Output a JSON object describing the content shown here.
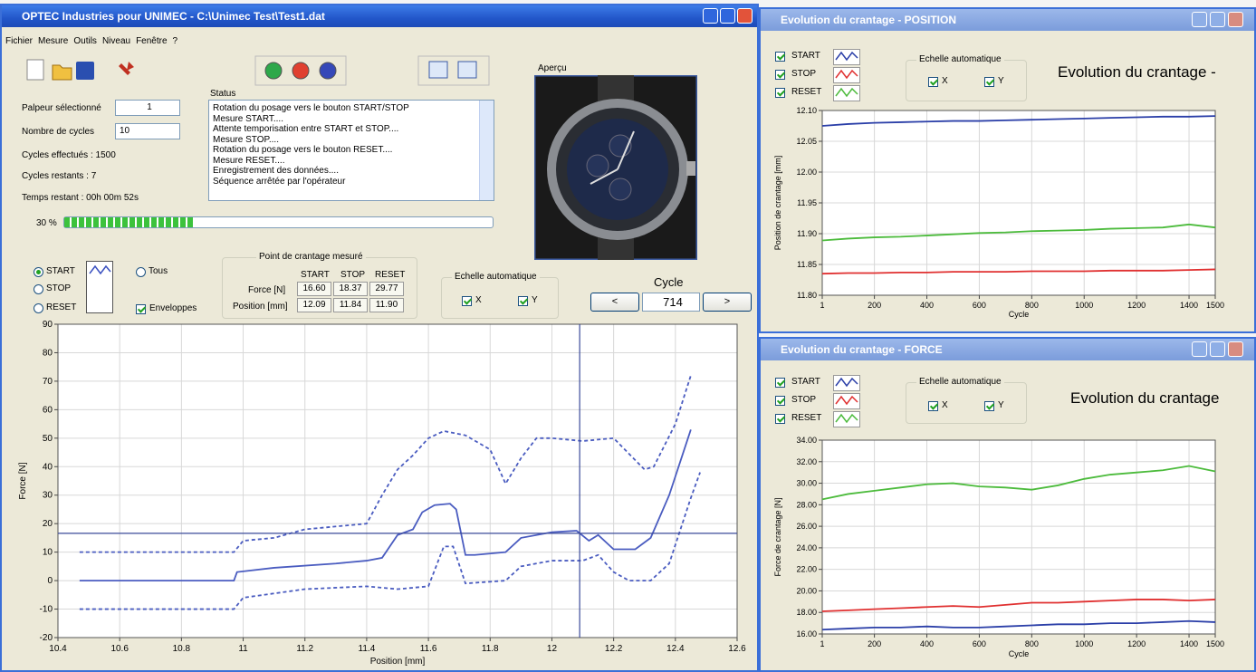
{
  "main_window": {
    "title": "OPTEC Industries pour UNIMEC - C:\\Unimec Test\\Test1.dat",
    "menu": [
      "Fichier",
      "Mesure",
      "Outils",
      "Niveau",
      "Fenêtre",
      "?"
    ],
    "palpeur_label": "Palpeur sélectionné",
    "palpeur_value": "1",
    "cycles_label": "Nombre de cycles",
    "cycles_value": "10",
    "cycles_effectues": "Cycles effectués : 1500",
    "cycles_restants": "Cycles restants : 7",
    "temps_restant": "Temps restant : 00h 00m 52s",
    "progress_label": "30 %",
    "progress": 30,
    "status_title": "Status",
    "status_lines": [
      "Rotation du posage vers le bouton START/STOP",
      "Mesure START....",
      "Attente temporisation entre START et STOP....",
      "Mesure STOP....",
      "Rotation du posage vers le bouton RESET....",
      "Mesure RESET....",
      "Enregistrement des données....",
      "Séquence arrêtée par l'opérateur"
    ],
    "apercu": "Aperçu",
    "radios": [
      "START",
      "STOP",
      "RESET"
    ],
    "tous": "Tous",
    "enveloppes": "Enveloppes",
    "point_title": "Point de crantage mesuré",
    "point_headers": [
      "START",
      "STOP",
      "RESET"
    ],
    "point_rows": [
      {
        "label": "Force [N]",
        "values": [
          "16.60",
          "18.37",
          "29.77"
        ]
      },
      {
        "label": "Position [mm]",
        "values": [
          "12.09",
          "11.84",
          "11.90"
        ]
      }
    ],
    "echelle": "Echelle automatique",
    "echelle_x": "X",
    "echelle_y": "Y",
    "cycle_label": "Cycle",
    "cycle_value": "714",
    "prev": "<",
    "next": ">"
  },
  "position_window": {
    "title": "Evolution du crantage - POSITION",
    "echelle": "Echelle automatique",
    "echelle_x": "X",
    "echelle_y": "Y"
  },
  "force_window": {
    "title": "Evolution du crantage - FORCE",
    "echelle": "Echelle automatique",
    "echelle_x": "X",
    "echelle_y": "Y"
  },
  "chart_data": [
    {
      "type": "line",
      "xlabel": "Position [mm]",
      "ylabel": "Force [N]",
      "xlim": [
        10.4,
        12.6
      ],
      "ylim": [
        -20,
        90
      ],
      "xticks": [
        10.4,
        10.6,
        10.8,
        11,
        11.2,
        11.4,
        11.6,
        11.8,
        12,
        12.2,
        12.4,
        12.6
      ],
      "yticks": [
        -20,
        -10,
        0,
        10,
        20,
        30,
        40,
        50,
        60,
        70,
        80,
        90
      ],
      "grid": true,
      "crosshair": {
        "x": 12.09,
        "y": 16.6,
        "color": "#3a4a9a"
      },
      "series": [
        {
          "color": "#4a5cc0",
          "dashed": false,
          "x": [
            10.47,
            10.97,
            10.98,
            11.1,
            11.3,
            11.4,
            11.45,
            11.5,
            11.55,
            11.58,
            11.62,
            11.67,
            11.69,
            11.72,
            11.75,
            11.85,
            11.9,
            12.0,
            12.08,
            12.12,
            12.15,
            12.2,
            12.27,
            12.32,
            12.38,
            12.45
          ],
          "values": [
            0,
            0,
            3,
            4.5,
            6,
            7,
            8,
            16,
            18,
            24,
            26.5,
            27,
            25,
            9,
            9,
            10,
            15,
            17,
            17.5,
            14,
            16,
            11,
            11,
            15,
            30,
            53
          ]
        },
        {
          "color": "#4a5cc0",
          "dashed": true,
          "x": [
            10.47,
            10.97,
            11.0,
            11.1,
            11.2,
            11.4,
            11.45,
            11.5,
            11.55,
            11.6,
            11.65,
            11.72,
            11.8,
            11.85,
            11.9,
            11.95,
            12.0,
            12.1,
            12.2,
            12.3,
            12.33,
            12.4,
            12.45
          ],
          "values": [
            10,
            10,
            14,
            15,
            18,
            20,
            30,
            39,
            44,
            50,
            52.5,
            51,
            46,
            34,
            43,
            50,
            50,
            49,
            50,
            39,
            40,
            55,
            72
          ]
        },
        {
          "color": "#4a5cc0",
          "dashed": true,
          "x": [
            10.47,
            10.97,
            11.0,
            11.2,
            11.4,
            11.5,
            11.6,
            11.65,
            11.68,
            11.72,
            11.85,
            11.9,
            12.0,
            12.1,
            12.15,
            12.2,
            12.25,
            12.32,
            12.38,
            12.45,
            12.48
          ],
          "values": [
            -10,
            -10,
            -6,
            -3,
            -2,
            -3,
            -2,
            12,
            12,
            -1,
            0,
            5,
            7,
            7,
            9,
            3,
            0,
            0,
            6,
            29,
            38
          ]
        }
      ]
    },
    {
      "type": "line",
      "title": "Evolution du crantage -",
      "xlabel": "Cycle",
      "ylabel": "Position de crantage [mm]",
      "xlim": [
        1,
        1500
      ],
      "ylim": [
        11.8,
        12.1
      ],
      "xticks": [
        1,
        200,
        400,
        600,
        800,
        1000,
        1200,
        1400,
        1500
      ],
      "yticks": [
        {
          "value": 11.8,
          "label": "11.80"
        },
        {
          "value": 11.85,
          "label": "11.85"
        },
        {
          "value": 11.9,
          "label": "11.90"
        },
        {
          "value": 11.95,
          "label": "11.95"
        },
        {
          "value": 12.0,
          "label": "12.00"
        },
        {
          "value": 12.05,
          "label": "12.05"
        },
        {
          "value": 12.1,
          "label": "12.10"
        }
      ],
      "grid": true,
      "x": [
        1,
        100,
        200,
        300,
        400,
        500,
        600,
        700,
        800,
        900,
        1000,
        1100,
        1200,
        1300,
        1400,
        1500
      ],
      "series": [
        {
          "name": "START",
          "color": "#2b3fa8",
          "values": [
            12.075,
            12.078,
            12.08,
            12.081,
            12.082,
            12.083,
            12.083,
            12.084,
            12.085,
            12.086,
            12.087,
            12.088,
            12.089,
            12.09,
            12.09,
            12.091
          ]
        },
        {
          "name": "STOP",
          "color": "#e03030",
          "values": [
            11.835,
            11.836,
            11.836,
            11.837,
            11.837,
            11.838,
            11.838,
            11.838,
            11.839,
            11.839,
            11.839,
            11.84,
            11.84,
            11.84,
            11.841,
            11.842
          ]
        },
        {
          "name": "RESET",
          "color": "#4cbb3c",
          "values": [
            11.889,
            11.892,
            11.894,
            11.895,
            11.897,
            11.899,
            11.901,
            11.902,
            11.904,
            11.905,
            11.906,
            11.908,
            11.909,
            11.91,
            11.915,
            11.91
          ]
        }
      ]
    },
    {
      "type": "line",
      "title": "Evolution du crantage",
      "xlabel": "Cycle",
      "ylabel": "Force de crantage [N]",
      "xlim": [
        1,
        1500
      ],
      "ylim": [
        16,
        34
      ],
      "xticks": [
        1,
        200,
        400,
        600,
        800,
        1000,
        1200,
        1400,
        1500
      ],
      "yticks": [
        {
          "value": 16,
          "label": "16.00"
        },
        {
          "value": 18,
          "label": "18.00"
        },
        {
          "value": 20,
          "label": "20.00"
        },
        {
          "value": 22,
          "label": "22.00"
        },
        {
          "value": 24,
          "label": "24.00"
        },
        {
          "value": 26,
          "label": "26.00"
        },
        {
          "value": 28,
          "label": "28.00"
        },
        {
          "value": 30,
          "label": "30.00"
        },
        {
          "value": 32,
          "label": "32.00"
        },
        {
          "value": 34,
          "label": "34.00"
        }
      ],
      "grid": true,
      "x": [
        1,
        100,
        200,
        300,
        400,
        500,
        600,
        700,
        800,
        900,
        1000,
        1100,
        1200,
        1300,
        1400,
        1500
      ],
      "series": [
        {
          "name": "START",
          "color": "#2b3fa8",
          "values": [
            16.4,
            16.5,
            16.6,
            16.6,
            16.7,
            16.6,
            16.6,
            16.7,
            16.8,
            16.9,
            16.9,
            17.0,
            17.0,
            17.1,
            17.2,
            17.1
          ]
        },
        {
          "name": "STOP",
          "color": "#e03030",
          "values": [
            18.1,
            18.2,
            18.3,
            18.4,
            18.5,
            18.6,
            18.5,
            18.7,
            18.9,
            18.9,
            19.0,
            19.1,
            19.2,
            19.2,
            19.1,
            19.2
          ]
        },
        {
          "name": "RESET",
          "color": "#4cbb3c",
          "values": [
            28.5,
            29.0,
            29.3,
            29.6,
            29.9,
            30.0,
            29.7,
            29.6,
            29.4,
            29.8,
            30.4,
            30.8,
            31.0,
            31.2,
            31.6,
            31.1
          ]
        }
      ]
    }
  ]
}
